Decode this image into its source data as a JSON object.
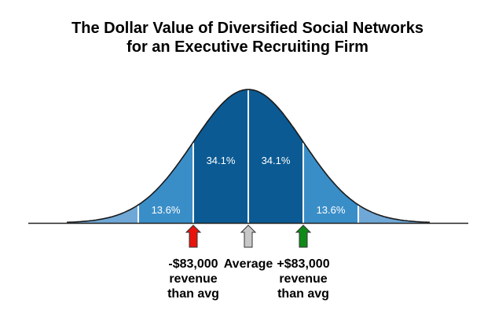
{
  "chart_data": {
    "type": "area",
    "title": [
      "The Dollar Value of Diversified Social Networks",
      "for an Executive Recruiting Firm"
    ],
    "bands": [
      {
        "from": -2,
        "to": -1,
        "label": "13.6%",
        "value": 13.6,
        "color": "#3a8ec8"
      },
      {
        "from": -1,
        "to": 0,
        "label": "34.1%",
        "value": 34.1,
        "color": "#0b5a93"
      },
      {
        "from": 0,
        "to": 1,
        "label": "34.1%",
        "value": 34.1,
        "color": "#0b5a93"
      },
      {
        "from": 1,
        "to": 2,
        "label": "13.6%",
        "value": 13.6,
        "color": "#3a8ec8"
      }
    ],
    "tails": [
      {
        "from": -3.3,
        "to": -2,
        "color": "#6fa8d6"
      },
      {
        "from": 2,
        "to": 3.3,
        "color": "#6fa8d6"
      }
    ],
    "markers": [
      {
        "x": -1,
        "color": "#e8140c",
        "label": "-$83,000\nrevenue\nthan avg"
      },
      {
        "x": 0,
        "color": "#c8c8c8",
        "label": "Average"
      },
      {
        "x": 1,
        "color": "#0f8a18",
        "label": "+$83,000\nrevenue\nthan avg"
      }
    ]
  }
}
